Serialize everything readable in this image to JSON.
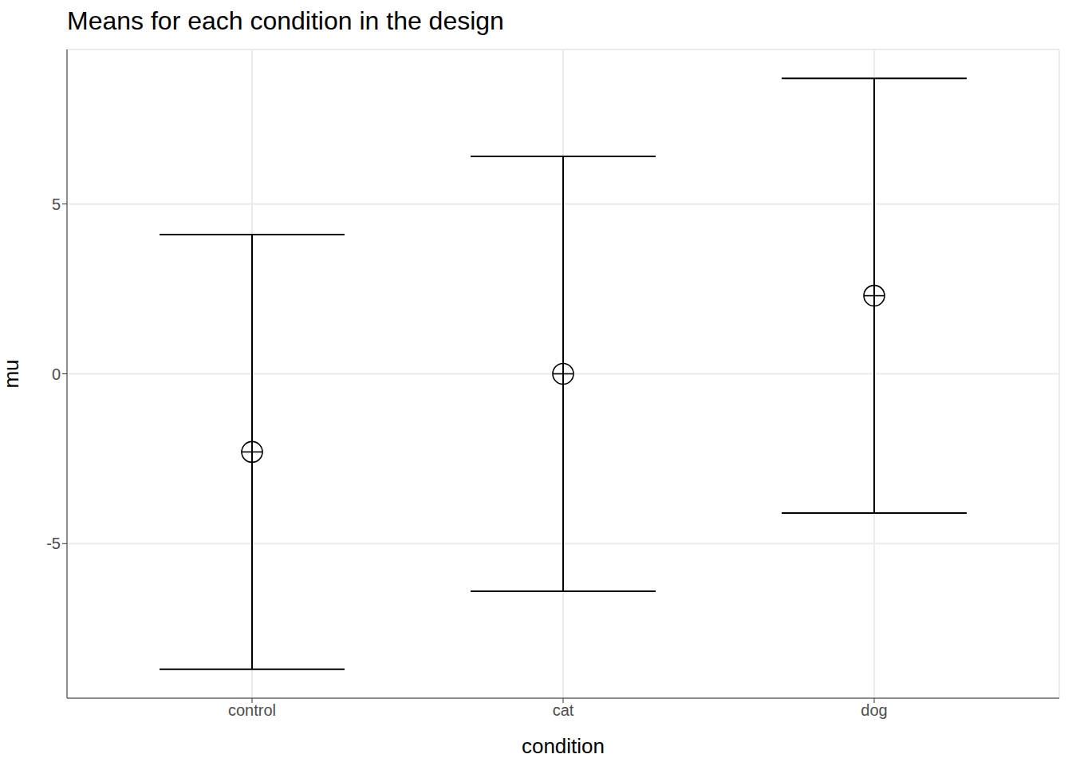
{
  "chart_data": {
    "type": "scatter",
    "title": "Means for each condition in the design",
    "x_label": "condition",
    "y_label": "mu",
    "categories": [
      "control",
      "cat",
      "dog"
    ],
    "values": [
      -2.3,
      0,
      2.3
    ],
    "error": [
      6.4,
      6.4,
      6.4
    ],
    "color": "#000000",
    "marker": "crosshair",
    "ylim": [
      -9.55,
      9.55
    ],
    "yticks": [
      -5,
      0,
      5
    ],
    "grid": true
  }
}
